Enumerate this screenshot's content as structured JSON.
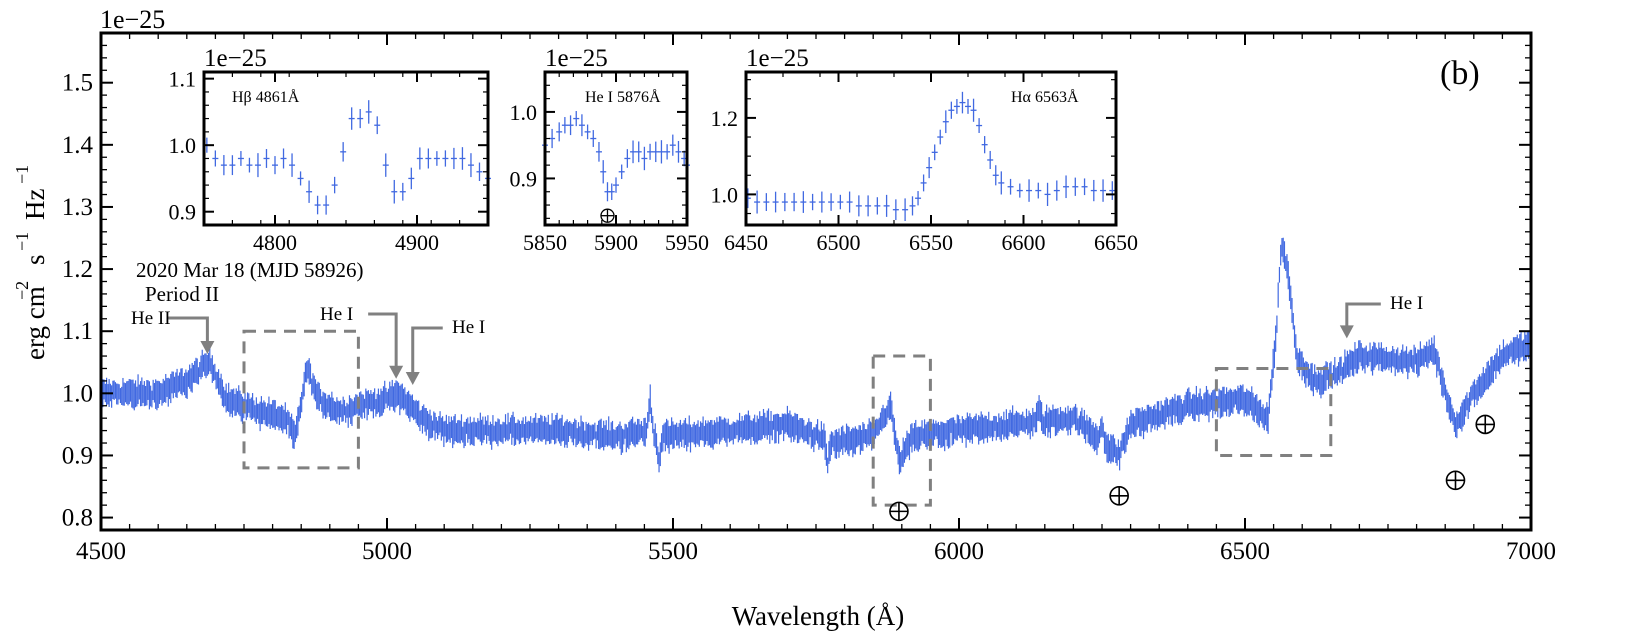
{
  "chart_data": {
    "type": "scatter",
    "panel_label": "(b)",
    "xlabel": "Wavelength (Å)",
    "ylabel": "erg cm",
    "ylabel_exp1": "−2",
    "ylabel_s": "s",
    "ylabel_exp2": "−1",
    "ylabel_hz": "Hz",
    "ylabel_exp3": "−1",
    "offset_text": "1e−25",
    "date_text": "2020 Mar 18 (MJD 58926)",
    "period_text": "Period II",
    "xlim": [
      4500,
      7000
    ],
    "ylim": [
      0.78,
      1.58
    ],
    "xticks": [
      4500,
      5000,
      5500,
      6000,
      6500,
      7000
    ],
    "xtick_labels": [
      "4500",
      "5000",
      "5500",
      "6000",
      "6500",
      "7000"
    ],
    "yticks": [
      0.8,
      0.9,
      1.0,
      1.1,
      1.2,
      1.3,
      1.4,
      1.5
    ],
    "ytick_labels": [
      "0.8",
      "0.9",
      "1.0",
      "1.1",
      "1.2",
      "1.3",
      "1.4",
      "1.5"
    ],
    "series_color": "#4169E1",
    "annotation_color": "#808080",
    "spectrum_continuum": [
      [
        4500,
        1.0
      ],
      [
        4600,
        1.0
      ],
      [
        4650,
        1.02
      ],
      [
        4690,
        1.05
      ],
      [
        4720,
        0.99
      ],
      [
        4780,
        0.97
      ],
      [
        4820,
        0.96
      ],
      [
        4840,
        0.93
      ],
      [
        4860,
        1.04
      ],
      [
        4880,
        0.99
      ],
      [
        4920,
        0.97
      ],
      [
        4950,
        0.98
      ],
      [
        5000,
        0.99
      ],
      [
        5020,
        1.0
      ],
      [
        5060,
        0.96
      ],
      [
        5100,
        0.94
      ],
      [
        5200,
        0.94
      ],
      [
        5300,
        0.94
      ],
      [
        5400,
        0.93
      ],
      [
        5460,
        0.94
      ],
      [
        5470,
        0.93
      ],
      [
        5600,
        0.94
      ],
      [
        5700,
        0.95
      ],
      [
        5780,
        0.92
      ],
      [
        5850,
        0.93
      ],
      [
        5880,
        0.98
      ],
      [
        5895,
        0.89
      ],
      [
        5920,
        0.93
      ],
      [
        6000,
        0.94
      ],
      [
        6100,
        0.95
      ],
      [
        6200,
        0.96
      ],
      [
        6280,
        0.9
      ],
      [
        6300,
        0.95
      ],
      [
        6400,
        0.98
      ],
      [
        6500,
        0.99
      ],
      [
        6540,
        0.96
      ],
      [
        6555,
        1.1
      ],
      [
        6563,
        1.24
      ],
      [
        6575,
        1.2
      ],
      [
        6590,
        1.06
      ],
      [
        6620,
        1.02
      ],
      [
        6660,
        1.03
      ],
      [
        6700,
        1.06
      ],
      [
        6800,
        1.05
      ],
      [
        6830,
        1.07
      ],
      [
        6860,
        0.97
      ],
      [
        6870,
        0.95
      ],
      [
        6900,
        1.0
      ],
      [
        6950,
        1.06
      ],
      [
        7000,
        1.08
      ]
    ],
    "features": [
      {
        "wl": 5460,
        "type": "spike",
        "height": 0.05
      },
      {
        "wl": 5475,
        "type": "dip",
        "height": -0.04
      },
      {
        "wl": 5770,
        "type": "dip",
        "height": -0.04
      },
      {
        "wl": 6250,
        "type": "spike",
        "height": 0.03
      },
      {
        "wl": 6140,
        "type": "spike",
        "height": 0.02
      }
    ],
    "line_labels": [
      {
        "text": "He II",
        "wl": 4686,
        "arrow_y": 1.065
      },
      {
        "text": "He I",
        "wl": 5016,
        "arrow_y": 1.025
      },
      {
        "text": "He I",
        "wl": 5045,
        "arrow_y": 1.015
      },
      {
        "text": "He I",
        "wl": 6678,
        "arrow_y": 1.09
      }
    ],
    "dashed_boxes": [
      {
        "x": [
          4750,
          4950
        ],
        "y": [
          0.88,
          1.1
        ]
      },
      {
        "x": [
          5850,
          5950
        ],
        "y": [
          0.82,
          1.06
        ]
      },
      {
        "x": [
          6450,
          6650
        ],
        "y": [
          0.9,
          1.04
        ]
      }
    ],
    "telluric_markers": [
      {
        "x": 5895,
        "y": 0.81
      },
      {
        "x": 6280,
        "y": 0.835
      },
      {
        "x": 6868,
        "y": 0.86
      },
      {
        "x": 6920,
        "y": 0.95
      }
    ],
    "insets": [
      {
        "title": "Hβ 4861Å",
        "offset_text": "1e−25",
        "xlim": [
          4750,
          4950
        ],
        "ylim": [
          0.88,
          1.11
        ],
        "xticks": [
          4800,
          4900
        ],
        "xtick_labels": [
          "4800",
          "4900"
        ],
        "yticks": [
          0.9,
          1.0,
          1.1
        ],
        "ytick_labels": [
          "0.9",
          "1.0",
          "1.1"
        ],
        "points": [
          [
            4752,
            1.0
          ],
          [
            4758,
            0.98
          ],
          [
            4764,
            0.97
          ],
          [
            4770,
            0.97
          ],
          [
            4776,
            0.98
          ],
          [
            4782,
            0.97
          ],
          [
            4788,
            0.97
          ],
          [
            4794,
            0.98
          ],
          [
            4800,
            0.97
          ],
          [
            4806,
            0.98
          ],
          [
            4812,
            0.97
          ],
          [
            4818,
            0.95
          ],
          [
            4824,
            0.93
          ],
          [
            4830,
            0.91
          ],
          [
            4836,
            0.91
          ],
          [
            4842,
            0.94
          ],
          [
            4848,
            0.99
          ],
          [
            4854,
            1.04
          ],
          [
            4860,
            1.04
          ],
          [
            4866,
            1.05
          ],
          [
            4872,
            1.03
          ],
          [
            4878,
            0.97
          ],
          [
            4884,
            0.93
          ],
          [
            4890,
            0.93
          ],
          [
            4896,
            0.95
          ],
          [
            4902,
            0.98
          ],
          [
            4908,
            0.98
          ],
          [
            4914,
            0.98
          ],
          [
            4920,
            0.98
          ],
          [
            4926,
            0.98
          ],
          [
            4932,
            0.98
          ],
          [
            4938,
            0.97
          ],
          [
            4944,
            0.96
          ],
          [
            4950,
            0.95
          ]
        ]
      },
      {
        "title": "He I 5876Å",
        "offset_text": "1e−25",
        "xlim": [
          5850,
          5950
        ],
        "ylim": [
          0.83,
          1.06
        ],
        "xticks": [
          5850,
          5900,
          5950
        ],
        "xtick_labels": [
          "5850",
          "5900",
          "5950"
        ],
        "yticks": [
          0.9,
          1.0
        ],
        "ytick_labels": [
          "0.9",
          "1.0"
        ],
        "points": [
          [
            5850,
            0.95
          ],
          [
            5855,
            0.96
          ],
          [
            5860,
            0.97
          ],
          [
            5864,
            0.98
          ],
          [
            5868,
            0.98
          ],
          [
            5872,
            0.99
          ],
          [
            5876,
            0.98
          ],
          [
            5880,
            0.97
          ],
          [
            5884,
            0.96
          ],
          [
            5888,
            0.94
          ],
          [
            5891,
            0.91
          ],
          [
            5894,
            0.88
          ],
          [
            5897,
            0.88
          ],
          [
            5900,
            0.89
          ],
          [
            5904,
            0.91
          ],
          [
            5908,
            0.93
          ],
          [
            5912,
            0.94
          ],
          [
            5916,
            0.94
          ],
          [
            5920,
            0.93
          ],
          [
            5924,
            0.94
          ],
          [
            5928,
            0.94
          ],
          [
            5932,
            0.94
          ],
          [
            5936,
            0.94
          ],
          [
            5940,
            0.95
          ],
          [
            5944,
            0.94
          ],
          [
            5948,
            0.93
          ],
          [
            5950,
            0.92
          ]
        ],
        "telluric": {
          "x": 5894,
          "y": 0.844
        }
      },
      {
        "title": "Hα 6563Å",
        "offset_text": "1e−25",
        "xlim": [
          6450,
          6650
        ],
        "ylim": [
          0.92,
          1.32
        ],
        "xticks": [
          6450,
          6500,
          6550,
          6600,
          6650
        ],
        "xtick_labels": [
          "6450",
          "6500",
          "6550",
          "6600",
          "6650"
        ],
        "yticks": [
          1.0,
          1.2
        ],
        "ytick_labels": [
          "1.0",
          "1.2"
        ],
        "points": [
          [
            6451,
            0.99
          ],
          [
            6456,
            0.98
          ],
          [
            6461,
            0.98
          ],
          [
            6466,
            0.98
          ],
          [
            6471,
            0.98
          ],
          [
            6476,
            0.98
          ],
          [
            6481,
            0.98
          ],
          [
            6486,
            0.98
          ],
          [
            6491,
            0.98
          ],
          [
            6496,
            0.98
          ],
          [
            6501,
            0.98
          ],
          [
            6506,
            0.98
          ],
          [
            6511,
            0.97
          ],
          [
            6516,
            0.97
          ],
          [
            6521,
            0.97
          ],
          [
            6526,
            0.97
          ],
          [
            6531,
            0.96
          ],
          [
            6536,
            0.96
          ],
          [
            6540,
            0.97
          ],
          [
            6543,
            0.99
          ],
          [
            6546,
            1.03
          ],
          [
            6549,
            1.07
          ],
          [
            6552,
            1.11
          ],
          [
            6555,
            1.15
          ],
          [
            6558,
            1.19
          ],
          [
            6561,
            1.22
          ],
          [
            6564,
            1.23
          ],
          [
            6567,
            1.24
          ],
          [
            6570,
            1.23
          ],
          [
            6573,
            1.22
          ],
          [
            6576,
            1.18
          ],
          [
            6579,
            1.13
          ],
          [
            6582,
            1.09
          ],
          [
            6585,
            1.05
          ],
          [
            6588,
            1.03
          ],
          [
            6593,
            1.02
          ],
          [
            6598,
            1.01
          ],
          [
            6603,
            1.01
          ],
          [
            6608,
            1.01
          ],
          [
            6613,
            1.0
          ],
          [
            6618,
            1.01
          ],
          [
            6623,
            1.02
          ],
          [
            6628,
            1.02
          ],
          [
            6633,
            1.02
          ],
          [
            6638,
            1.01
          ],
          [
            6643,
            1.01
          ],
          [
            6648,
            1.01
          ]
        ]
      }
    ]
  }
}
